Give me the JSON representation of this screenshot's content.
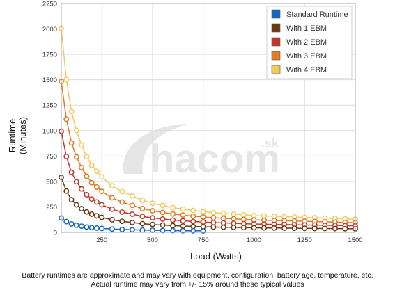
{
  "chart_data": {
    "type": "line",
    "xlabel": "Load (Watts)",
    "ylabel_lines": [
      "Runtime",
      "(Minutes)"
    ],
    "xlim": [
      50,
      1500
    ],
    "ylim": [
      0,
      2250
    ],
    "xticks": [
      250,
      500,
      750,
      1000,
      1250,
      1500
    ],
    "yticks": [
      0,
      250,
      500,
      750,
      1000,
      1250,
      1500,
      1750,
      2000,
      2250
    ],
    "grid": true,
    "legend_position": "top-right",
    "base_curve": {
      "x": [
        50,
        75,
        100,
        125,
        150,
        175,
        200,
        225,
        250,
        300,
        350,
        400,
        450,
        500,
        600,
        700,
        800,
        900,
        1000,
        1100,
        1200,
        1300,
        1400,
        1500
      ],
      "y": [
        140,
        105,
        83,
        70,
        60,
        52,
        46,
        42,
        38,
        32,
        28,
        25,
        22,
        20,
        17,
        15,
        13.5,
        12.5,
        11.5,
        11,
        10.5,
        10,
        9.5,
        9
      ]
    },
    "series": [
      {
        "name": "Standard Runtime",
        "color": "#1565c0",
        "multiplier": 1,
        "x_max": 750
      },
      {
        "name": "With 1 EBM",
        "color": "#6b3a10",
        "multiplier": 3.86,
        "x_max": 1500
      },
      {
        "name": "With 2 EBM",
        "color": "#c0392b",
        "multiplier": 7.1,
        "x_max": 1500
      },
      {
        "name": "With 3 EBM",
        "color": "#e07b20",
        "multiplier": 10.6,
        "x_max": 1500
      },
      {
        "name": "With 4 EBM",
        "color": "#f3c95a",
        "multiplier": 14.3,
        "x_max": 1500
      }
    ]
  },
  "watermark": {
    "text": "hacom",
    "suffix": ".sk"
  },
  "caption": {
    "line1": "Battery runtimes are approximate and may vary with equipment, configuration, battery age, temperature, etc.",
    "line2": "Actual runtime may vary from +/- 15% around these typical values"
  }
}
